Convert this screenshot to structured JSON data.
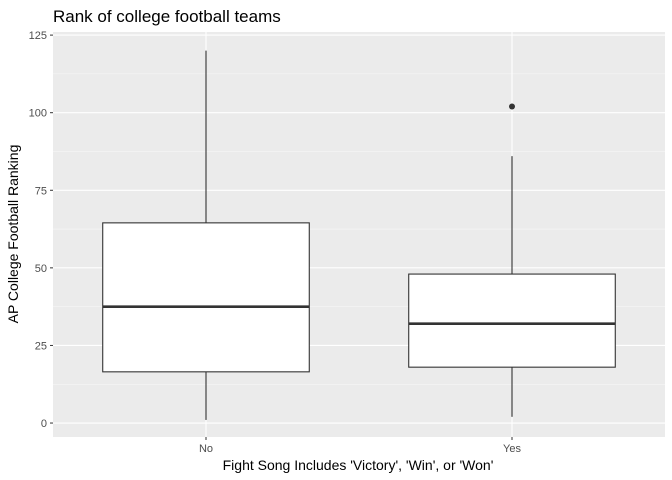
{
  "chart_data": {
    "type": "boxplot",
    "title": "Rank of college football teams",
    "xlabel": "Fight Song Includes 'Victory', 'Win', or 'Won'",
    "ylabel": "AP College Football Ranking",
    "categories": [
      "No",
      "Yes"
    ],
    "yticks": [
      0,
      25,
      50,
      75,
      100,
      125
    ],
    "ylim": [
      -4.5,
      126
    ],
    "grid": true,
    "boxes": [
      {
        "category": "No",
        "whisker_low": 1,
        "q1": 16.5,
        "median": 37.5,
        "q3": 64.5,
        "whisker_high": 120,
        "outliers": []
      },
      {
        "category": "Yes",
        "whisker_low": 2,
        "q1": 18,
        "median": 32,
        "q3": 48,
        "whisker_high": 86,
        "outliers": [
          102
        ]
      }
    ]
  },
  "colors": {
    "panel_background": "#ebebeb",
    "grid_major": "#ffffff",
    "box_fill": "#ffffff",
    "box_stroke": "#333333",
    "tick_text": "#4d4d4d"
  }
}
